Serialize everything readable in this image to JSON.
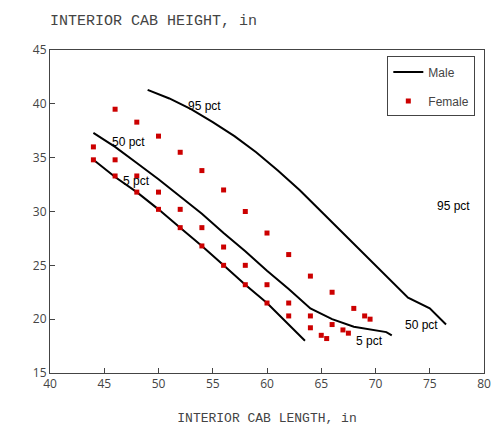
{
  "chart_data": {
    "type": "line",
    "title": "INTERIOR CAB HEIGHT, in",
    "xlabel": "INTERIOR CAB LENGTH, in",
    "xlim": [
      40,
      80
    ],
    "ylim": [
      15,
      45
    ],
    "xticks": [
      40,
      45,
      50,
      55,
      60,
      65,
      70,
      75,
      80
    ],
    "yticks": [
      15,
      20,
      25,
      30,
      35,
      40,
      45
    ],
    "grid": false,
    "legend": "upper right",
    "series": [
      {
        "name": "Male",
        "color": "#000000",
        "line_style": "solid",
        "x": [
          44,
          46,
          48,
          50,
          52,
          54,
          56,
          58,
          60,
          62,
          63,
          63.5
        ],
        "values": [
          34.8,
          33.2,
          31.8,
          30.2,
          28.5,
          26.8,
          25.0,
          23.2,
          21.5,
          19.5,
          18.5,
          18.0
        ]
      },
      {
        "name": "Male",
        "color": "#000000",
        "line_style": "solid",
        "x": [
          44,
          46,
          48,
          50,
          52,
          54,
          56,
          58,
          60,
          62,
          64,
          66,
          68,
          70,
          71,
          71.5
        ],
        "values": [
          37.3,
          36.0,
          34.5,
          33.0,
          31.4,
          29.8,
          28.0,
          26.3,
          24.5,
          22.8,
          21.0,
          20.0,
          19.3,
          19.0,
          18.8,
          18.5
        ]
      },
      {
        "name": "Male",
        "color": "#000000",
        "line_style": "solid",
        "x": [
          49,
          51,
          53,
          55,
          57,
          59,
          61,
          63,
          65,
          67,
          69,
          71,
          73,
          75,
          76,
          76.5
        ],
        "values": [
          41.3,
          40.5,
          39.5,
          38.3,
          37.0,
          35.5,
          33.8,
          32.0,
          30.0,
          28.0,
          26.0,
          24.0,
          22.0,
          21.0,
          20.0,
          19.5
        ]
      },
      {
        "name": "Female",
        "color": "#cc0000",
        "line_style": "none",
        "marker": "square",
        "x": [
          44,
          46,
          48,
          50,
          52,
          54,
          56,
          58,
          60,
          62,
          64,
          65,
          65.5
        ],
        "values": [
          34.8,
          33.3,
          31.8,
          30.2,
          28.5,
          26.8,
          25.0,
          23.2,
          21.5,
          20.3,
          19.2,
          18.5,
          18.2
        ]
      },
      {
        "name": "Female",
        "color": "#cc0000",
        "line_style": "none",
        "marker": "square",
        "x": [
          44,
          46,
          48,
          50,
          52,
          54,
          56,
          58,
          60,
          62,
          64,
          66,
          67,
          67.5
        ],
        "values": [
          36.0,
          34.8,
          33.3,
          31.8,
          30.2,
          28.5,
          26.7,
          25.0,
          23.2,
          21.5,
          20.3,
          19.5,
          19.0,
          18.7
        ]
      },
      {
        "name": "Female",
        "color": "#cc0000",
        "line_style": "none",
        "marker": "square",
        "x": [
          46,
          48,
          50,
          52,
          54,
          56,
          58,
          60,
          62,
          64,
          66,
          68,
          69,
          69.5
        ],
        "values": [
          39.5,
          38.3,
          37.0,
          35.5,
          33.8,
          32.0,
          30.0,
          28.0,
          26.0,
          24.0,
          22.5,
          21.0,
          20.3,
          20.0
        ]
      }
    ],
    "annotations": [
      {
        "text": "5 pct",
        "x": 46.5,
        "y": 32.8
      },
      {
        "text": "50 pct",
        "x": 45.5,
        "y": 36.5
      },
      {
        "text": "95 pct",
        "x": 52.5,
        "y": 39.8
      },
      {
        "text": "5 pct",
        "x": 68.0,
        "y": 18.0
      },
      {
        "text": "50 pct",
        "x": 72.5,
        "y": 19.5
      },
      {
        "text": "95 pct",
        "x": 75.5,
        "y": 30.5
      }
    ]
  }
}
